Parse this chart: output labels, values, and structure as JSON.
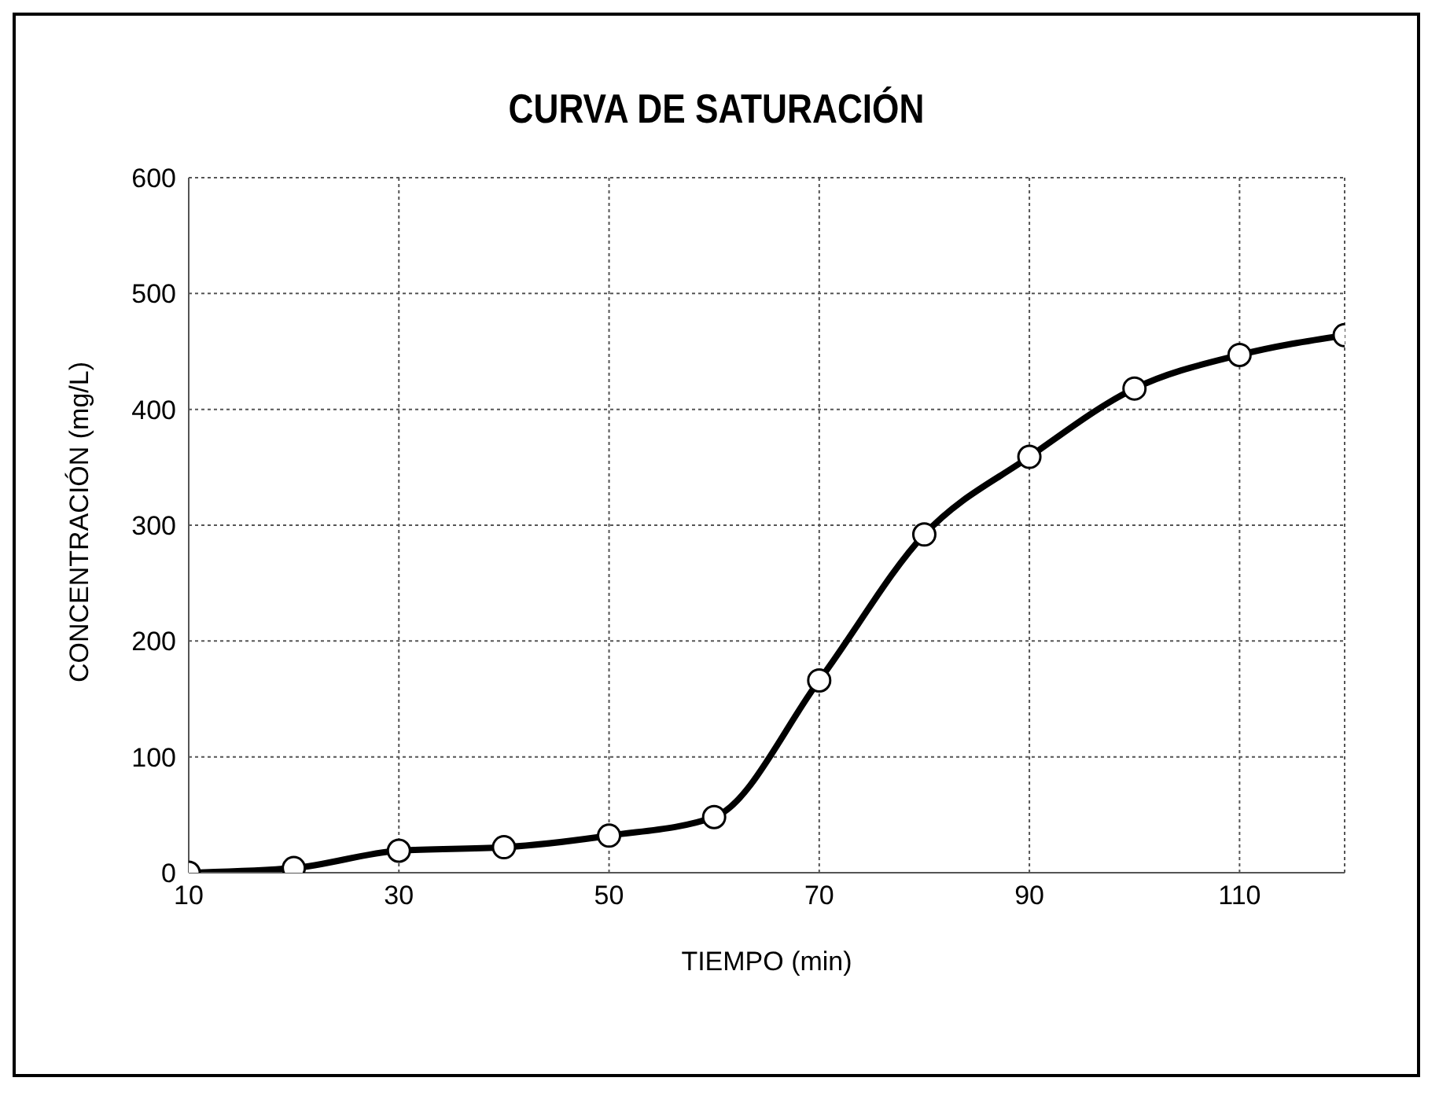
{
  "chart_data": {
    "type": "line",
    "title": "CURVA DE SATURACIÓN",
    "xlabel": "TIEMPO (min)",
    "ylabel": "CONCENTRACIÓN (mg/L)",
    "x": [
      10,
      20,
      30,
      40,
      50,
      60,
      70,
      80,
      90,
      100,
      110,
      120
    ],
    "series": [
      {
        "color": "#000000",
        "values": [
          0,
          4,
          19,
          22,
          32,
          48,
          166,
          292,
          359,
          418,
          447,
          464
        ]
      }
    ],
    "xlim": [
      10,
      120
    ],
    "xticks": [
      10,
      30,
      50,
      70,
      90,
      110
    ],
    "ylim": [
      0,
      600
    ],
    "yticks": [
      0,
      100,
      200,
      300,
      400,
      500,
      600
    ],
    "grid": true,
    "legend": false,
    "marker": "circle",
    "line_style": "solid"
  }
}
